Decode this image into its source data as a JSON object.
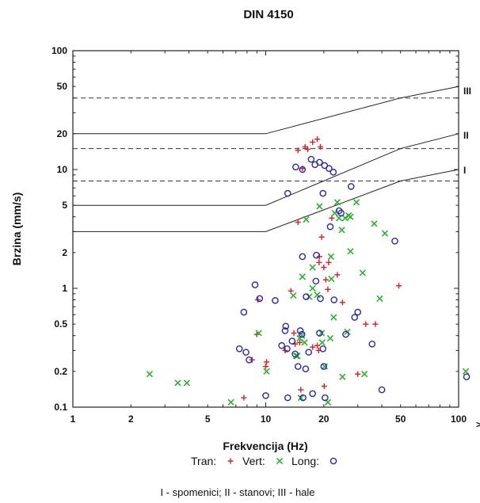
{
  "chart_data": {
    "type": "scatter",
    "title": "DIN 4150",
    "xlabel": "Frekvencija (Hz)",
    "ylabel": "Brzina (mm/s)",
    "x_scale": "log",
    "y_scale": "log",
    "xlim": [
      1,
      100
    ],
    "ylim": [
      0.1,
      100
    ],
    "x_ticks": [
      1,
      2,
      5,
      10,
      20,
      50,
      100
    ],
    "y_ticks": [
      0.1,
      0.2,
      0.5,
      1,
      2,
      5,
      10,
      20,
      50,
      100
    ],
    "x_tick_labels": [
      "1",
      "2",
      "5",
      "10",
      "20",
      "50",
      "100"
    ],
    "y_tick_labels": [
      "0.1",
      "0.2",
      "0.5",
      "1",
      "2",
      "5",
      "10",
      "20",
      "50",
      "100"
    ],
    "grid": false,
    "legend": {
      "position": "bottom-center",
      "entries": [
        {
          "label": "Tran:",
          "marker": "+",
          "color": "#d62020"
        },
        {
          "label": "Vert:",
          "marker": "x",
          "color": "#30b030"
        },
        {
          "label": "Long:",
          "marker": "o",
          "color": "#2a2aa8"
        }
      ]
    },
    "limit_curves": [
      {
        "label": "I",
        "points": [
          [
            1,
            3
          ],
          [
            10,
            3
          ],
          [
            50,
            8
          ],
          [
            100,
            10
          ]
        ]
      },
      {
        "label": "II",
        "points": [
          [
            1,
            5
          ],
          [
            10,
            5
          ],
          [
            50,
            15
          ],
          [
            100,
            20
          ]
        ]
      },
      {
        "label": "III",
        "points": [
          [
            1,
            20
          ],
          [
            10,
            20
          ],
          [
            50,
            40
          ],
          [
            100,
            50
          ]
        ]
      }
    ],
    "dashed_levels": [
      8,
      15,
      40
    ],
    "series": [
      {
        "name": "Tran",
        "marker": "+",
        "color": "#d62020",
        "points": [
          [
            8.5,
            0.25
          ],
          [
            7.7,
            0.12
          ],
          [
            9,
            0.41
          ],
          [
            10,
            0.22
          ],
          [
            10.1,
            0.24
          ],
          [
            9.1,
            0.8
          ],
          [
            12.6,
            0.3
          ],
          [
            13.5,
            0.95
          ],
          [
            14,
            0.42
          ],
          [
            14.2,
            0.34
          ],
          [
            15,
            0.35
          ],
          [
            15.2,
            0.14
          ],
          [
            14.7,
            3.6
          ],
          [
            14.7,
            14.5
          ],
          [
            15.5,
            10.2
          ],
          [
            16,
            15.5
          ],
          [
            16.5,
            14.8
          ],
          [
            17.5,
            17
          ],
          [
            18.5,
            18
          ],
          [
            19.2,
            15.5
          ],
          [
            17.5,
            0.32
          ],
          [
            18.8,
            0.3
          ],
          [
            19,
            1.85
          ],
          [
            18.9,
            1.65
          ],
          [
            19.5,
            2.7
          ],
          [
            20,
            1.5
          ],
          [
            20.1,
            0.15
          ],
          [
            20.5,
            1.18
          ],
          [
            21,
            0.98
          ],
          [
            21.2,
            1.65
          ],
          [
            22,
            3.9
          ],
          [
            23.5,
            1.3
          ],
          [
            25,
            0.76
          ],
          [
            33,
            0.5
          ],
          [
            37,
            0.5
          ],
          [
            30,
            0.19
          ],
          [
            49,
            1.05
          ],
          [
            18.5,
            0.33
          ]
        ]
      },
      {
        "name": "Vert",
        "marker": "x",
        "color": "#30b030",
        "points": [
          [
            2.5,
            0.19
          ],
          [
            3.5,
            0.16
          ],
          [
            3.9,
            0.16
          ],
          [
            6.6,
            0.11
          ],
          [
            10.1,
            0.2
          ],
          [
            9.2,
            0.42
          ],
          [
            13.9,
            0.87
          ],
          [
            14.4,
            0.27
          ],
          [
            14.6,
            0.27
          ],
          [
            15,
            0.38
          ],
          [
            15.4,
            0.4
          ],
          [
            15.9,
            0.35
          ],
          [
            15.2,
            0.12
          ],
          [
            15.5,
            1.25
          ],
          [
            16.2,
            3.8
          ],
          [
            16.8,
            0.85
          ],
          [
            17.5,
            1.5
          ],
          [
            17.5,
            1.0
          ],
          [
            18.5,
            0.88
          ],
          [
            19.5,
            0.42
          ],
          [
            20.2,
            0.22
          ],
          [
            19,
            4.9
          ],
          [
            19.6,
            0.35
          ],
          [
            21.6,
            0.38
          ],
          [
            21.8,
            1.85
          ],
          [
            21.9,
            1.2
          ],
          [
            22.5,
            0.57
          ],
          [
            22.8,
            4.3
          ],
          [
            23.5,
            5.3
          ],
          [
            24,
            3.9
          ],
          [
            24.8,
            3.1
          ],
          [
            25.8,
            3.9
          ],
          [
            26.5,
            0.43
          ],
          [
            26.9,
            4.1
          ],
          [
            27.5,
            4.0
          ],
          [
            27.5,
            2.05
          ],
          [
            29.5,
            5.3
          ],
          [
            31.8,
            1.35
          ],
          [
            32.5,
            0.19
          ],
          [
            36.5,
            3.5
          ],
          [
            39,
            0.82
          ],
          [
            41.5,
            2.9
          ],
          [
            109,
            0.2
          ],
          [
            21,
            0.11
          ],
          [
            25,
            0.18
          ]
        ]
      },
      {
        "name": "Long",
        "marker": "o",
        "color": "#2a2aa8",
        "points": [
          [
            7.3,
            0.31
          ],
          [
            7.7,
            0.63
          ],
          [
            7.9,
            0.29
          ],
          [
            8.2,
            0.25
          ],
          [
            8.8,
            1.07
          ],
          [
            9.3,
            0.82
          ],
          [
            10,
            0.125
          ],
          [
            11.2,
            0.79
          ],
          [
            12.1,
            0.33
          ],
          [
            12.6,
            0.44
          ],
          [
            12.7,
            0.48
          ],
          [
            12.9,
            0.31
          ],
          [
            13,
            0.12
          ],
          [
            13.7,
            0.36
          ],
          [
            14.2,
            0.28
          ],
          [
            14.7,
            0.22
          ],
          [
            15.1,
            0.44
          ],
          [
            15.4,
            0.41
          ],
          [
            15.5,
            1.85
          ],
          [
            15.6,
            0.12
          ],
          [
            16.2,
            0.85
          ],
          [
            16.1,
            0.21
          ],
          [
            16.7,
            0.29
          ],
          [
            17.5,
            0.13
          ],
          [
            18.2,
            1.15
          ],
          [
            18.3,
            1.9
          ],
          [
            19,
            0.42
          ],
          [
            19.2,
            0.82
          ],
          [
            19.8,
            0.31
          ],
          [
            20,
            0.22
          ],
          [
            20.3,
            0.12
          ],
          [
            21.6,
            3.3
          ],
          [
            22.6,
            0.8
          ],
          [
            13,
            6.3
          ],
          [
            14.3,
            10.5
          ],
          [
            15.5,
            10
          ],
          [
            17.2,
            12.2
          ],
          [
            18,
            11
          ],
          [
            19,
            11.5
          ],
          [
            20.2,
            10.8
          ],
          [
            21.3,
            10.2
          ],
          [
            22.4,
            9.5
          ],
          [
            19.8,
            6.3
          ],
          [
            24.6,
            4.3
          ],
          [
            26,
            0.41
          ],
          [
            27.7,
            7.2
          ],
          [
            28.9,
            0.57
          ],
          [
            30,
            0.63
          ],
          [
            35.6,
            0.34
          ],
          [
            40,
            0.14
          ],
          [
            46.7,
            2.5
          ],
          [
            110,
            0.18
          ],
          [
            24,
            4.5
          ]
        ]
      }
    ]
  },
  "labels": {
    "title": "DIN 4150",
    "xlabel": "Frekvencija (Hz)",
    "ylabel": "Brzina (mm/s)",
    "legend_tran": "Tran:",
    "legend_vert": "Vert:",
    "legend_long": "Long:",
    "zone_i": "I",
    "zone_ii": "II",
    "zone_iii": "III",
    "footnote": "I - spomenici; II - stanovi; III - hale",
    "x_overflow": ">"
  },
  "colors": {
    "tran": "#d62020",
    "vert": "#30b030",
    "long": "#2a2aa8",
    "axis": "#222222",
    "curve": "#222222",
    "dashed": "#333333"
  }
}
